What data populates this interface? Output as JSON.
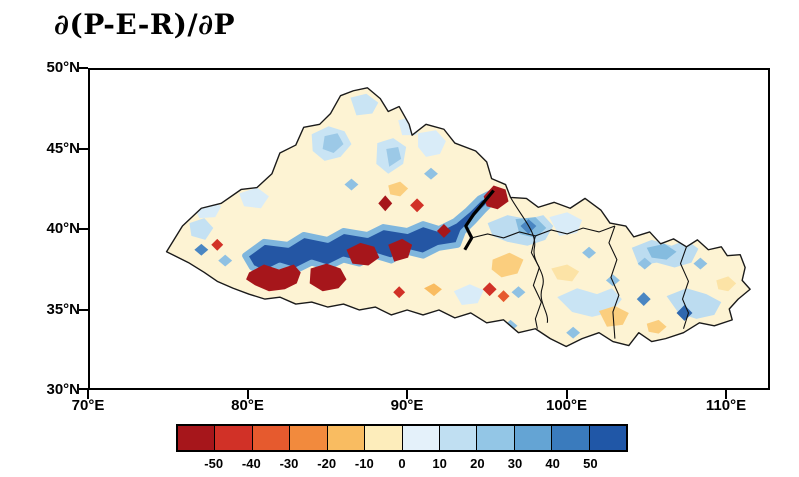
{
  "figure": {
    "title": "∂(P-E-R)/∂P"
  },
  "axes": {
    "x_ticks": [
      "70°E",
      "80°E",
      "90°E",
      "100°E",
      "110°E"
    ],
    "y_ticks": [
      "50°N",
      "45°N",
      "40°N",
      "35°N",
      "30°N"
    ]
  },
  "colorbar": {
    "tick_labels": [
      "-50",
      "-40",
      "-30",
      "-20",
      "-10",
      "0",
      "10",
      "20",
      "30",
      "40",
      "50"
    ],
    "colors": [
      "#a6161b",
      "#d13127",
      "#e65a2e",
      "#f28a3d",
      "#f9bc61",
      "#fdedbb",
      "#e4f1fa",
      "#c0dff2",
      "#93c6e6",
      "#64a4d4",
      "#3a7bbd",
      "#2057a7"
    ]
  },
  "chart_data": {
    "type": "heatmap",
    "title": "∂(P-E-R)/∂P",
    "x_axis": {
      "ticks": [
        "70°E",
        "80°E",
        "90°E",
        "100°E",
        "110°E"
      ],
      "range": [
        "70°E",
        "112.7°E"
      ]
    },
    "y_axis": {
      "ticks": [
        "30°N",
        "35°N",
        "40°N",
        "45°N",
        "50°N"
      ],
      "range": [
        "30°N",
        "50°N"
      ]
    },
    "contour_levels": [
      -50,
      -40,
      -30,
      -20,
      -10,
      0,
      10,
      20,
      30,
      40,
      50
    ],
    "palette": [
      "#a6161b",
      "#d13127",
      "#e65a2e",
      "#f28a3d",
      "#f9bc61",
      "#fdedbb",
      "#e4f1fa",
      "#c0dff2",
      "#93c6e6",
      "#64a4d4",
      "#3a7bbd",
      "#2057a7"
    ],
    "legend_position": "bottom",
    "map_region": "irregular outlined region spanning roughly 75E-112E, 32.5N-49N with internal provincial boundaries",
    "features": [
      {
        "level": "> 50",
        "color": "#2456a4",
        "description": "elongated strong-positive (dark blue) band",
        "lon_extent": [
          80,
          93.5
        ],
        "lat_extent": [
          37,
          40.5
        ],
        "note": "with a northeast extension reaching about (95.5E, 42.3N)"
      },
      {
        "level": "< -50",
        "color": "#a6161b",
        "description": "strong-negative (dark red) patches embedded in and along the band",
        "locations_lon_lat": [
          [
            80.5,
            37.0
          ],
          [
            84.5,
            36.8
          ],
          [
            87.5,
            38.0
          ],
          [
            89.5,
            38.3
          ],
          [
            88.6,
            41.6
          ],
          [
            94.8,
            41.7
          ]
        ]
      },
      {
        "level": "10 to 30",
        "color": "#bcdcf0",
        "description": "scattered weak-positive (light blue) patches",
        "locations_lon_lat": [
          [
            85.5,
            45.5
          ],
          [
            89.0,
            44.0
          ],
          [
            97.0,
            39.5
          ],
          [
            106.0,
            37.7
          ],
          [
            101.0,
            35.0
          ],
          [
            108.0,
            35.3
          ]
        ]
      },
      {
        "level": "-30 to -10",
        "color": "#fbce7e",
        "description": "scattered weak-negative (light orange) patches",
        "locations_lon_lat": [
          [
            96.5,
            37.3
          ],
          [
            103.0,
            34.2
          ],
          [
            89.0,
            42.5
          ],
          [
            105.7,
            33.9
          ]
        ]
      },
      {
        "level": "-10 to 10",
        "color": "#fdf3d3",
        "description": "near-zero cream background over most of the domain"
      }
    ]
  }
}
